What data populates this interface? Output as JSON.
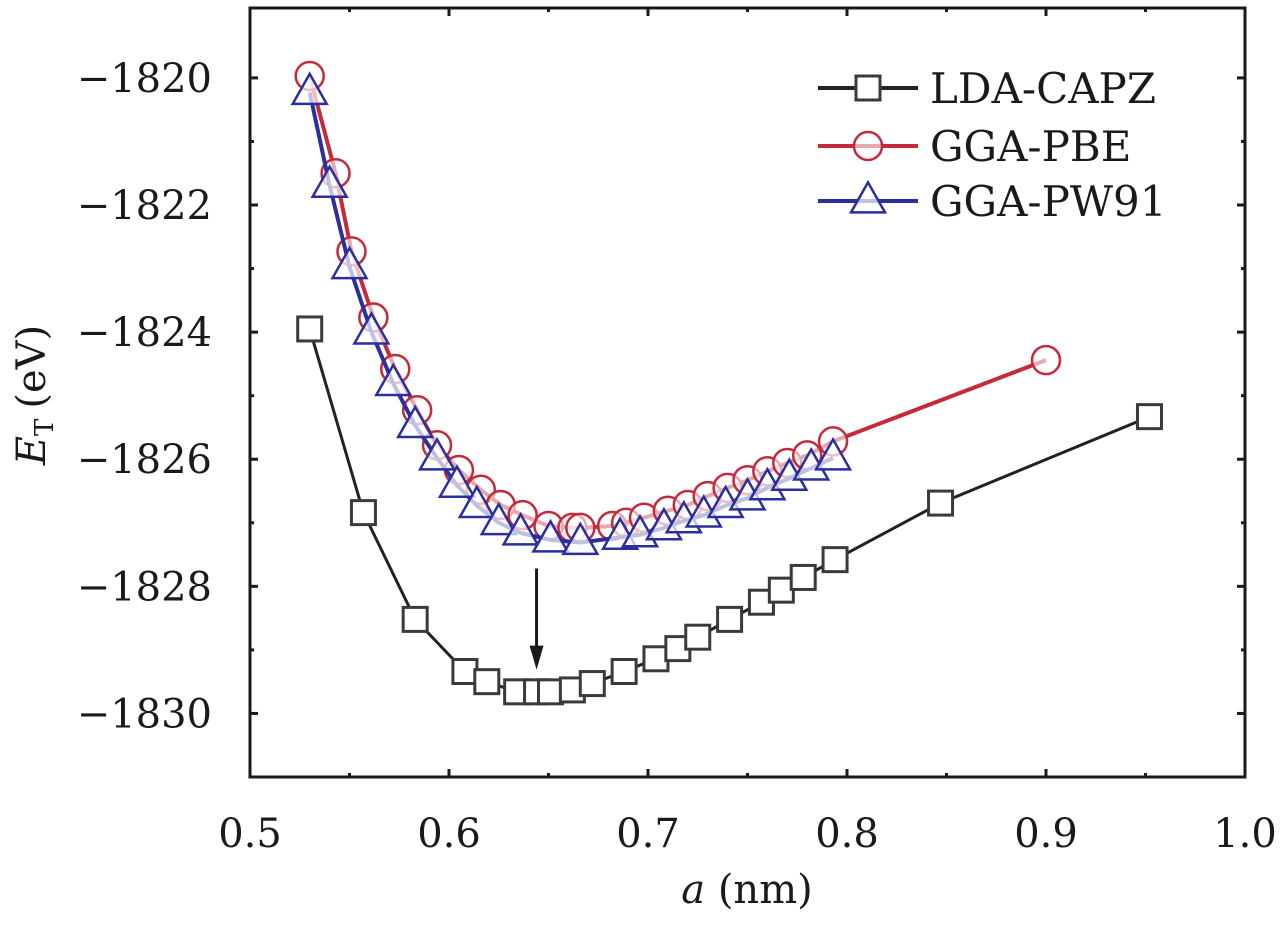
{
  "chart_data": {
    "type": "line",
    "title": "",
    "xlabel": "a (nm)",
    "xlabel_italic_part": "a",
    "xlabel_unit": "(nm)",
    "ylabel": "E_T (eV)",
    "ylabel_symbol": "E",
    "ylabel_subscript": "T",
    "ylabel_unit": "(eV)",
    "xlim": [
      0.5,
      1.0
    ],
    "ylim": [
      -1831.0,
      -1818.9
    ],
    "xticks": [
      0.5,
      0.6,
      0.7,
      0.8,
      0.9,
      1.0
    ],
    "xtick_labels": [
      "0.5",
      "0.6",
      "0.7",
      "0.8",
      "0.9",
      "1.0"
    ],
    "xminor_ticks": [
      0.55,
      0.65,
      0.75,
      0.85,
      0.95
    ],
    "yticks": [
      -1820,
      -1822,
      -1824,
      -1826,
      -1828,
      -1830
    ],
    "ytick_labels": [
      "−1820",
      "−1822",
      "−1824",
      "−1826",
      "−1828",
      "−1830"
    ],
    "yminor_ticks": [
      -1821,
      -1823,
      -1825,
      -1827,
      -1829
    ],
    "grid": false,
    "legend_position": "top-right",
    "series": [
      {
        "name": "LDA-CAPZ",
        "marker": "square",
        "color": "#222222",
        "x": [
          0.53,
          0.557,
          0.583,
          0.608,
          0.619,
          0.634,
          0.644,
          0.651,
          0.662,
          0.672,
          0.688,
          0.704,
          0.715,
          0.725,
          0.741,
          0.757,
          0.767,
          0.778,
          0.794,
          0.847,
          0.952
        ],
        "y": [
          -1823.95,
          -1826.84,
          -1828.52,
          -1829.34,
          -1829.5,
          -1829.66,
          -1829.66,
          -1829.66,
          -1829.63,
          -1829.53,
          -1829.34,
          -1829.14,
          -1828.98,
          -1828.8,
          -1828.52,
          -1828.25,
          -1828.06,
          -1827.86,
          -1827.58,
          -1826.69,
          -1825.33
        ]
      },
      {
        "name": "GGA-PBE",
        "marker": "circle",
        "color": "#c42a3a",
        "x": [
          0.53,
          0.543,
          0.551,
          0.562,
          0.573,
          0.584,
          0.594,
          0.605,
          0.616,
          0.626,
          0.637,
          0.65,
          0.662,
          0.666,
          0.682,
          0.689,
          0.698,
          0.71,
          0.72,
          0.73,
          0.74,
          0.75,
          0.76,
          0.77,
          0.78,
          0.793,
          0.9
        ],
        "y": [
          -1819.97,
          -1821.5,
          -1822.73,
          -1823.77,
          -1824.58,
          -1825.23,
          -1825.78,
          -1826.17,
          -1826.48,
          -1826.72,
          -1826.88,
          -1827.05,
          -1827.08,
          -1827.08,
          -1827.05,
          -1827.0,
          -1826.92,
          -1826.81,
          -1826.72,
          -1826.58,
          -1826.45,
          -1826.33,
          -1826.19,
          -1826.06,
          -1825.94,
          -1825.72,
          -1824.44
        ]
      },
      {
        "name": "GGA-PW91",
        "marker": "triangle",
        "color": "#2b2f9c",
        "x": [
          0.53,
          0.54,
          0.55,
          0.561,
          0.572,
          0.583,
          0.594,
          0.604,
          0.614,
          0.625,
          0.636,
          0.651,
          0.666,
          0.686,
          0.696,
          0.708,
          0.718,
          0.728,
          0.739,
          0.75,
          0.76,
          0.771,
          0.782,
          0.793
        ],
        "y": [
          -1820.23,
          -1821.69,
          -1822.97,
          -1824.0,
          -1824.81,
          -1825.47,
          -1825.98,
          -1826.41,
          -1826.73,
          -1827.0,
          -1827.16,
          -1827.27,
          -1827.31,
          -1827.23,
          -1827.19,
          -1827.08,
          -1826.97,
          -1826.88,
          -1826.73,
          -1826.61,
          -1826.45,
          -1826.3,
          -1826.14,
          -1825.98
        ]
      }
    ],
    "annotations": [
      {
        "type": "arrow",
        "x": 0.644,
        "y_from": -1827.72,
        "y_to": -1829.31,
        "color": "#1a1a1a"
      }
    ]
  }
}
